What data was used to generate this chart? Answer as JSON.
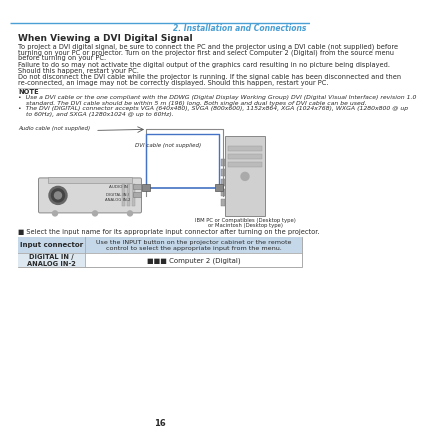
{
  "page_num": "16",
  "chapter_header": "2. Installation and Connections",
  "header_line_color": "#4a9fd4",
  "section_title": "When Viewing a DVI Digital Signal",
  "body_text": [
    "To project a DVI digital signal, be sure to connect the PC and the projector using a DVI cable (not supplied) before",
    "turning on your PC or projector. Turn on the projector first and select Computer 2 (Digital) from the source menu",
    "before turning on your PC.",
    "Failure to do so may not activate the digital output of the graphics card resulting in no picture being displayed.",
    "Should this happen, restart your PC.",
    "Do not disconnect the DVI cable while the projector is running. If the signal cable has been disconnected and then",
    "re-connected, an image may not be correctly displayed. Should this happen, restart your PC."
  ],
  "note_label": "NOTE",
  "note_bullets": [
    "•  Use a DVI cable or the one compliant with the DDWG (Digital Display Working Group) DVI (Digital Visual Interface) revision 1.0",
    "    standard. The DVI cable should be within 5 m (196) long. Both single and dual types of DVI cable can be used.",
    "•  The DVI (DIGITAL) connector accepts VGA (640x480), SVGA (800x600), 1152x864, XGA (1024x768), WXGA (1280x800 @ up",
    "    to 60Hz), and SXGA (1280x1024 @ up to 60Hz)."
  ],
  "audio_cable_label": "Audio cable (not supplied)",
  "dvi_cable_label": "DVI cable (not supplied)",
  "ibm_pc_label": "IBM PC or Compatibles (Desktop type)",
  "macintosh_label": "or Macintosh (Desktop type)",
  "bullet_text": "Select the input name for its appropriate input connector after turning on the projector.",
  "table_col1_header": "Input connector",
  "table_col2_header": "Use the INPUT button on the projector cabinet or the remote\ncontrol to select the appropriate input from the menu.",
  "table_row1_col1": "DIGITAL IN /\nANALOG IN-2",
  "table_row1_col2": "■■■ Computer 2 (Digital)",
  "bg_color": "#ffffff",
  "text_color": "#2a2a2a",
  "header_text_color": "#4a9fd4",
  "table_header_bg": "#c5d8ea",
  "table_row1_bg": "#dde8f0",
  "note_line_color": "#aaaaaa",
  "blue_cable_color": "#4472c4",
  "projector_body": "#d8d8d8",
  "projector_dark": "#aaaaaa",
  "pc_body": "#d0d0d0",
  "pc_screen": "#b8b8b8"
}
